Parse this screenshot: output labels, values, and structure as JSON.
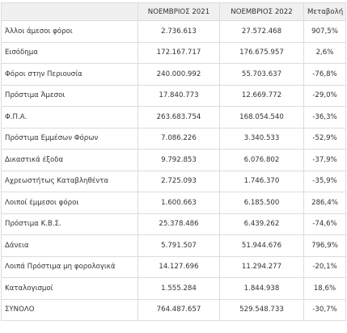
{
  "table": {
    "header": [
      "ΝΟΕΜΒΡΙΟΣ 2021",
      "ΝΟΕΜΒΡΙΟΣ 2022",
      "Μεταβολή"
    ],
    "rows": [
      [
        "Άλλοι άμεσοι φόροι",
        "2.736.613",
        "27.572.468",
        "907,5%"
      ],
      [
        "Εισόδημα",
        "172.167.717",
        "176.675.957",
        "2,6%"
      ],
      [
        "Φόροι στην Περιουσία",
        "240.000.992",
        "55.703.637",
        "-76,8%"
      ],
      [
        "Πρόστιμα  Άμεσοι",
        "17.840.773",
        "12.669.772",
        "-29,0%"
      ],
      [
        "Φ.Π.Α.",
        "263.683.754",
        "168.054.540",
        "-36,3%"
      ],
      [
        "Πρόστιμα Εμμέσων Φόρων",
        "7.086.226",
        "3.340.533",
        "-52,9%"
      ],
      [
        "Δικαστικά έξοδα",
        "9.792.853",
        "6.076.802",
        "-37,9%"
      ],
      [
        "Αχρεωστήτως Καταβληθέντα",
        "2.725.093",
        "1.746.370",
        "-35,9%"
      ],
      [
        "Λοιποί έμμεσοι φόροι",
        "1.600.663",
        "6.185.500",
        "286,4%"
      ],
      [
        "Πρόστιμα Κ.Β.Σ.",
        "25.378.486",
        "6.439.262",
        "-74,6%"
      ],
      [
        "Δάνεια",
        "5.791.507",
        "51.944.676",
        "796,9%"
      ],
      [
        "Λοιπά Πρόστιμα μη φορολογικά",
        "14.127.696",
        "11.294.277",
        "-20,1%"
      ],
      [
        "Καταλογισμοί",
        "1.555.284",
        "1.844.938",
        "18,6%"
      ],
      [
        "ΣΥΝΟΛΟ",
        "764.487.657",
        "529.548.733",
        "-30,7%"
      ]
    ]
  }
}
